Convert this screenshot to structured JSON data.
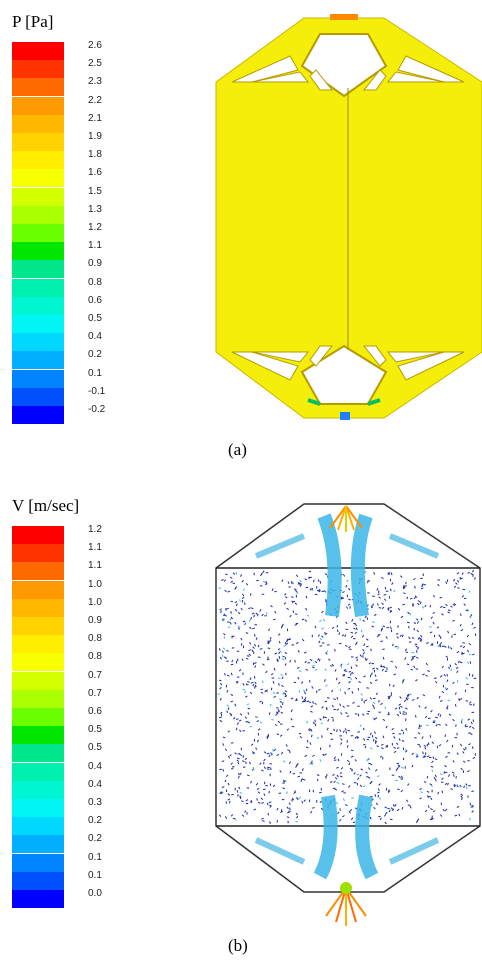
{
  "figure_a": {
    "legend_title": "P [Pa]",
    "ticks": [
      "2.6",
      "2.5",
      "2.3",
      "2.2",
      "2.1",
      "1.9",
      "1.8",
      "1.6",
      "1.5",
      "1.3",
      "1.2",
      "1.1",
      "0.9",
      "0.8",
      "0.6",
      "0.5",
      "0.4",
      "0.2",
      "0.1",
      "-0.1",
      "-0.2"
    ],
    "caption": "(a)"
  },
  "figure_b": {
    "legend_title": "V [m/sec]",
    "ticks": [
      "1.2",
      "1.1",
      "1.1",
      "1.0",
      "1.0",
      "0.9",
      "0.8",
      "0.8",
      "0.7",
      "0.7",
      "0.6",
      "0.5",
      "0.5",
      "0.4",
      "0.4",
      "0.3",
      "0.2",
      "0.2",
      "0.1",
      "0.1",
      "0.0"
    ],
    "caption": "(b)"
  },
  "colormap": [
    "#ff0000",
    "#ff3300",
    "#ff6a00",
    "#ff9900",
    "#ffb700",
    "#ffd200",
    "#ffee00",
    "#f8ff00",
    "#d4ff00",
    "#aaff00",
    "#6bff00",
    "#00e600",
    "#00e68a",
    "#00f0b0",
    "#00f5d2",
    "#00f5f5",
    "#00d8ff",
    "#00b0ff",
    "#0084ff",
    "#0050ff",
    "#0000ff"
  ],
  "colors": {
    "pressure_fill": "#f4ee0a",
    "frame_fill": "#f4e817",
    "vector_blue": "#1a2aa8",
    "vector_cyan": "#3ab6e8"
  }
}
